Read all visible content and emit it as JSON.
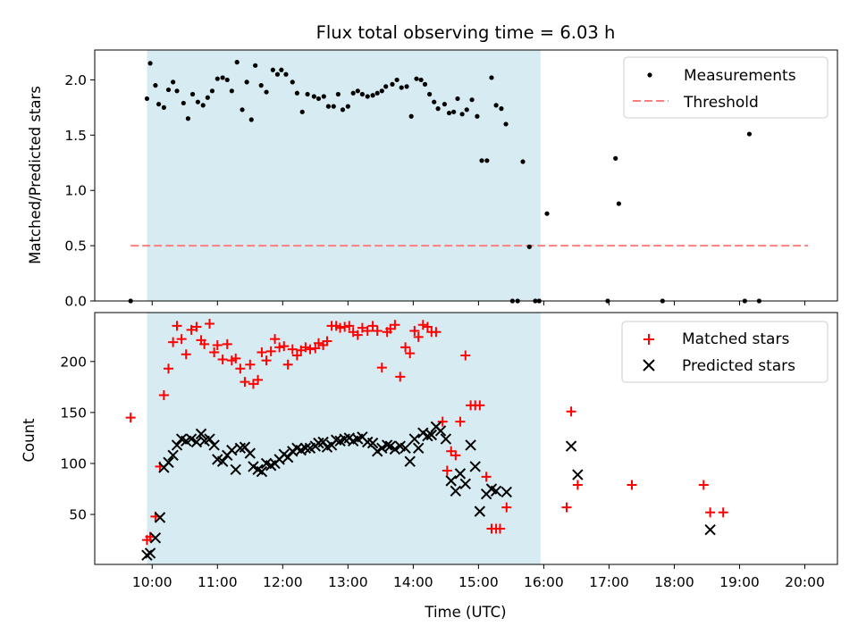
{
  "chart_data": {
    "type": "scatter",
    "title": "Flux total observing time = 6.03 h",
    "xlabel": "Time (UTC)",
    "x_ticks": [
      "10:00",
      "11:00",
      "12:00",
      "13:00",
      "14:00",
      "15:00",
      "16:00",
      "17:00",
      "18:00",
      "19:00",
      "20:00"
    ],
    "xlim_hours": [
      9.12,
      20.5
    ],
    "shaded_interval_hours": [
      9.92,
      15.95
    ],
    "colors": {
      "shade": "#add8e6",
      "matched": "#ff0000",
      "predicted": "#000000",
      "measurement": "#000000",
      "threshold": "#ff7f7f"
    },
    "top": {
      "ylabel": "Matched/Predicted stars",
      "ylim": [
        0,
        2.27
      ],
      "yticks": [
        "0.0",
        "0.5",
        "1.0",
        "1.5",
        "2.0"
      ],
      "legend": [
        "Measurements",
        "Threshold"
      ],
      "threshold": {
        "value": 0.5,
        "x_range": [
          9.67,
          20.05
        ]
      },
      "measurements": [
        [
          9.67,
          0.0
        ],
        [
          9.92,
          1.83
        ],
        [
          9.97,
          2.15
        ],
        [
          10.05,
          1.95
        ],
        [
          10.1,
          1.78
        ],
        [
          10.18,
          1.75
        ],
        [
          10.25,
          1.91
        ],
        [
          10.32,
          1.98
        ],
        [
          10.38,
          1.9
        ],
        [
          10.48,
          1.79
        ],
        [
          10.55,
          1.65
        ],
        [
          10.62,
          1.87
        ],
        [
          10.7,
          1.8
        ],
        [
          10.78,
          1.77
        ],
        [
          10.85,
          1.84
        ],
        [
          10.92,
          1.9
        ],
        [
          11.0,
          2.01
        ],
        [
          11.08,
          2.02
        ],
        [
          11.15,
          2.0
        ],
        [
          11.22,
          1.9
        ],
        [
          11.3,
          2.16
        ],
        [
          11.38,
          1.73
        ],
        [
          11.45,
          1.98
        ],
        [
          11.52,
          1.64
        ],
        [
          11.58,
          2.13
        ],
        [
          11.67,
          1.95
        ],
        [
          11.75,
          1.89
        ],
        [
          11.85,
          2.09
        ],
        [
          11.92,
          2.05
        ],
        [
          11.98,
          2.09
        ],
        [
          12.05,
          2.05
        ],
        [
          12.15,
          1.98
        ],
        [
          12.22,
          1.88
        ],
        [
          12.3,
          1.71
        ],
        [
          12.38,
          1.87
        ],
        [
          12.48,
          1.85
        ],
        [
          12.55,
          1.83
        ],
        [
          12.63,
          1.85
        ],
        [
          12.7,
          1.76
        ],
        [
          12.78,
          1.76
        ],
        [
          12.85,
          1.87
        ],
        [
          12.92,
          1.73
        ],
        [
          13.0,
          1.76
        ],
        [
          13.08,
          1.88
        ],
        [
          13.15,
          1.9
        ],
        [
          13.22,
          1.87
        ],
        [
          13.3,
          1.85
        ],
        [
          13.38,
          1.86
        ],
        [
          13.45,
          1.88
        ],
        [
          13.52,
          1.9
        ],
        [
          13.58,
          1.94
        ],
        [
          13.68,
          1.96
        ],
        [
          13.75,
          2.0
        ],
        [
          13.82,
          1.93
        ],
        [
          13.9,
          1.94
        ],
        [
          13.97,
          1.67
        ],
        [
          14.05,
          2.01
        ],
        [
          14.12,
          2.0
        ],
        [
          14.18,
          1.96
        ],
        [
          14.25,
          1.87
        ],
        [
          14.32,
          1.8
        ],
        [
          14.38,
          1.74
        ],
        [
          14.48,
          1.78
        ],
        [
          14.55,
          1.7
        ],
        [
          14.62,
          1.71
        ],
        [
          14.68,
          1.83
        ],
        [
          14.75,
          1.69
        ],
        [
          14.82,
          1.73
        ],
        [
          14.9,
          1.82
        ],
        [
          14.98,
          1.67
        ],
        [
          15.05,
          1.27
        ],
        [
          15.13,
          1.27
        ],
        [
          15.2,
          2.02
        ],
        [
          15.27,
          1.77
        ],
        [
          15.35,
          1.74
        ],
        [
          15.42,
          1.6
        ],
        [
          15.52,
          0.0
        ],
        [
          15.6,
          0.0
        ],
        [
          15.68,
          1.26
        ],
        [
          15.78,
          0.49
        ],
        [
          15.87,
          0.0
        ],
        [
          15.93,
          0.0
        ],
        [
          16.05,
          0.79
        ],
        [
          16.98,
          0.0
        ],
        [
          17.1,
          1.29
        ],
        [
          17.15,
          0.88
        ],
        [
          17.82,
          0.0
        ],
        [
          19.08,
          0.0
        ],
        [
          19.15,
          1.51
        ],
        [
          19.3,
          0.0
        ]
      ]
    },
    "bottom": {
      "ylabel": "Count",
      "ylim": [
        1,
        248
      ],
      "yticks": [
        "50",
        "100",
        "150",
        "200"
      ],
      "legend": [
        "Matched stars",
        "Predicted stars"
      ],
      "matched": [
        [
          9.67,
          145
        ],
        [
          9.92,
          25
        ],
        [
          9.97,
          28
        ],
        [
          10.05,
          48
        ],
        [
          10.12,
          97
        ],
        [
          10.18,
          167
        ],
        [
          10.25,
          193
        ],
        [
          10.32,
          219
        ],
        [
          10.38,
          235
        ],
        [
          10.45,
          222
        ],
        [
          10.52,
          207
        ],
        [
          10.6,
          231
        ],
        [
          10.68,
          234
        ],
        [
          10.75,
          221
        ],
        [
          10.8,
          217
        ],
        [
          10.88,
          237
        ],
        [
          10.95,
          209
        ],
        [
          11.0,
          216
        ],
        [
          11.08,
          202
        ],
        [
          11.15,
          217
        ],
        [
          11.22,
          201
        ],
        [
          11.28,
          203
        ],
        [
          11.35,
          193
        ],
        [
          11.42,
          180
        ],
        [
          11.5,
          197
        ],
        [
          11.55,
          178
        ],
        [
          11.62,
          182
        ],
        [
          11.68,
          209
        ],
        [
          11.75,
          201
        ],
        [
          11.82,
          210
        ],
        [
          11.88,
          222
        ],
        [
          11.95,
          214
        ],
        [
          12.02,
          215
        ],
        [
          12.08,
          197
        ],
        [
          12.15,
          212
        ],
        [
          12.22,
          206
        ],
        [
          12.28,
          211
        ],
        [
          12.35,
          214
        ],
        [
          12.42,
          212
        ],
        [
          12.5,
          213
        ],
        [
          12.55,
          218
        ],
        [
          12.62,
          216
        ],
        [
          12.68,
          220
        ],
        [
          12.75,
          235
        ],
        [
          12.82,
          235
        ],
        [
          12.88,
          233
        ],
        [
          12.95,
          234
        ],
        [
          13.02,
          235
        ],
        [
          13.08,
          229
        ],
        [
          13.15,
          226
        ],
        [
          13.22,
          233
        ],
        [
          13.3,
          230
        ],
        [
          13.38,
          235
        ],
        [
          13.45,
          230
        ],
        [
          13.52,
          194
        ],
        [
          13.6,
          229
        ],
        [
          13.65,
          232
        ],
        [
          13.72,
          236
        ],
        [
          13.8,
          185
        ],
        [
          13.88,
          214
        ],
        [
          13.95,
          208
        ],
        [
          14.02,
          230
        ],
        [
          14.08,
          224
        ],
        [
          14.15,
          236
        ],
        [
          14.22,
          234
        ],
        [
          14.28,
          229
        ],
        [
          14.35,
          229
        ],
        [
          14.45,
          141
        ],
        [
          14.52,
          93
        ],
        [
          14.58,
          112
        ],
        [
          14.65,
          108
        ],
        [
          14.72,
          141
        ],
        [
          14.8,
          206
        ],
        [
          14.88,
          157
        ],
        [
          14.95,
          157
        ],
        [
          15.02,
          157
        ],
        [
          15.12,
          87
        ],
        [
          15.2,
          36
        ],
        [
          15.27,
          36
        ],
        [
          15.33,
          36
        ],
        [
          15.43,
          57
        ],
        [
          16.35,
          57
        ],
        [
          16.42,
          151
        ],
        [
          16.52,
          79
        ],
        [
          17.35,
          79
        ],
        [
          18.45,
          79
        ],
        [
          18.55,
          52
        ],
        [
          18.75,
          52
        ]
      ],
      "predicted": [
        [
          9.92,
          10
        ],
        [
          9.97,
          12
        ],
        [
          10.05,
          27
        ],
        [
          10.12,
          47
        ],
        [
          10.18,
          96
        ],
        [
          10.25,
          101
        ],
        [
          10.32,
          108
        ],
        [
          10.38,
          118
        ],
        [
          10.45,
          124
        ],
        [
          10.52,
          122
        ],
        [
          10.6,
          124
        ],
        [
          10.68,
          121
        ],
        [
          10.75,
          129
        ],
        [
          10.8,
          122
        ],
        [
          10.88,
          124
        ],
        [
          10.95,
          118
        ],
        [
          11.0,
          104
        ],
        [
          11.08,
          102
        ],
        [
          11.15,
          108
        ],
        [
          11.22,
          113
        ],
        [
          11.28,
          94
        ],
        [
          11.35,
          115
        ],
        [
          11.42,
          116
        ],
        [
          11.5,
          110
        ],
        [
          11.55,
          97
        ],
        [
          11.62,
          94
        ],
        [
          11.68,
          92
        ],
        [
          11.75,
          100
        ],
        [
          11.82,
          98
        ],
        [
          11.88,
          100
        ],
        [
          11.95,
          104
        ],
        [
          12.02,
          109
        ],
        [
          12.08,
          106
        ],
        [
          12.15,
          112
        ],
        [
          12.22,
          115
        ],
        [
          12.28,
          113
        ],
        [
          12.35,
          115
        ],
        [
          12.42,
          115
        ],
        [
          12.5,
          117
        ],
        [
          12.55,
          120
        ],
        [
          12.62,
          121
        ],
        [
          12.68,
          116
        ],
        [
          12.75,
          118
        ],
        [
          12.82,
          123
        ],
        [
          12.88,
          122
        ],
        [
          12.95,
          124
        ],
        [
          13.02,
          125
        ],
        [
          13.08,
          122
        ],
        [
          13.15,
          124
        ],
        [
          13.22,
          126
        ],
        [
          13.3,
          121
        ],
        [
          13.38,
          120
        ],
        [
          13.45,
          112
        ],
        [
          13.52,
          115
        ],
        [
          13.6,
          118
        ],
        [
          13.65,
          117
        ],
        [
          13.72,
          114
        ],
        [
          13.8,
          117
        ],
        [
          13.88,
          115
        ],
        [
          13.95,
          102
        ],
        [
          14.02,
          124
        ],
        [
          14.08,
          115
        ],
        [
          14.15,
          130
        ],
        [
          14.22,
          127
        ],
        [
          14.28,
          128
        ],
        [
          14.35,
          136
        ],
        [
          14.42,
          132
        ],
        [
          14.5,
          124
        ],
        [
          14.58,
          83
        ],
        [
          14.65,
          73
        ],
        [
          14.72,
          90
        ],
        [
          14.8,
          80
        ],
        [
          14.88,
          118
        ],
        [
          14.95,
          97
        ],
        [
          15.02,
          53
        ],
        [
          15.12,
          70
        ],
        [
          15.2,
          75
        ],
        [
          15.27,
          73
        ],
        [
          15.43,
          72
        ],
        [
          16.42,
          117
        ],
        [
          16.52,
          89
        ],
        [
          18.55,
          35
        ]
      ]
    }
  }
}
